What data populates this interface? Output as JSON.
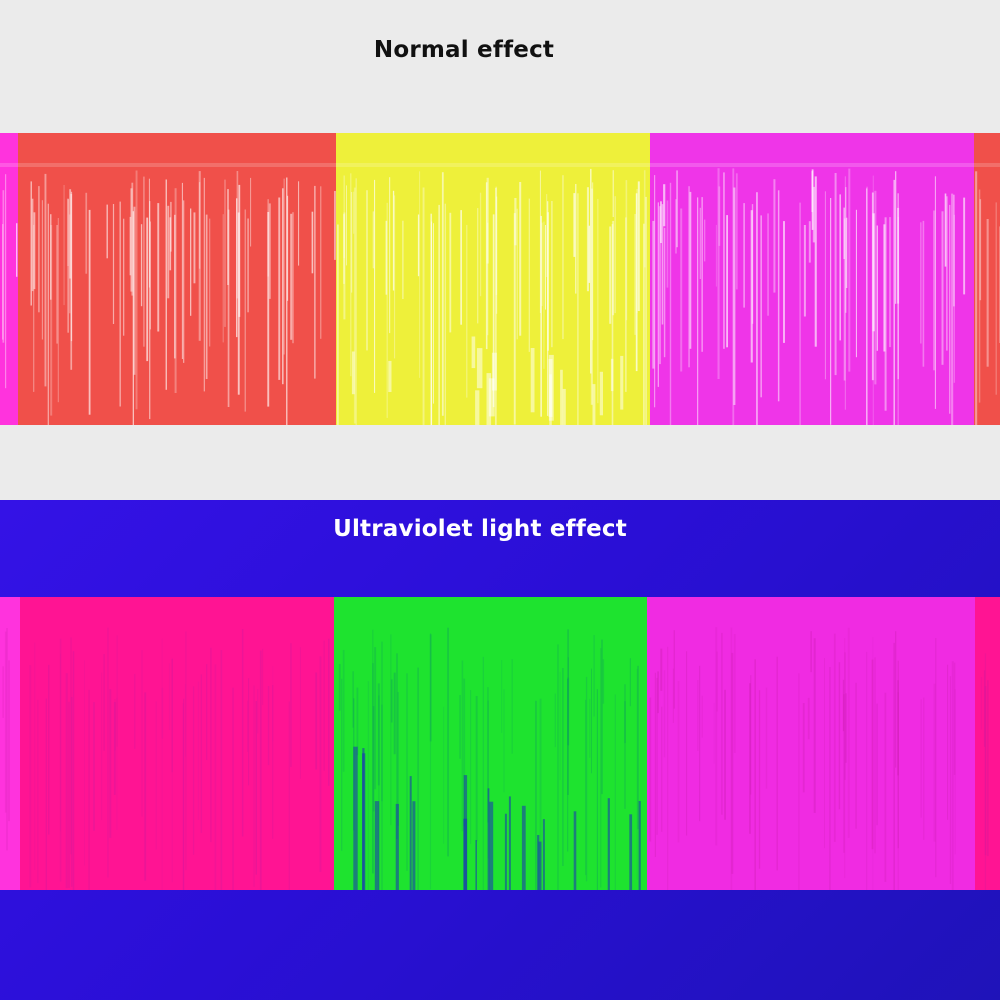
{
  "normal_section": {
    "title": "Normal effect",
    "colors": {
      "background": "#ebebeb",
      "red": "#f0504a",
      "yellow": "#eef03a",
      "magenta": "#ef35e8",
      "pink_edge": "#ff33dd"
    }
  },
  "uv_section": {
    "title": "Ultraviolet light effect",
    "colors": {
      "background": "#2a10d8",
      "red": "#ff1493",
      "green": "#1ee32f",
      "magenta": "#f02be2",
      "pink_edge": "#ff33dd"
    }
  }
}
